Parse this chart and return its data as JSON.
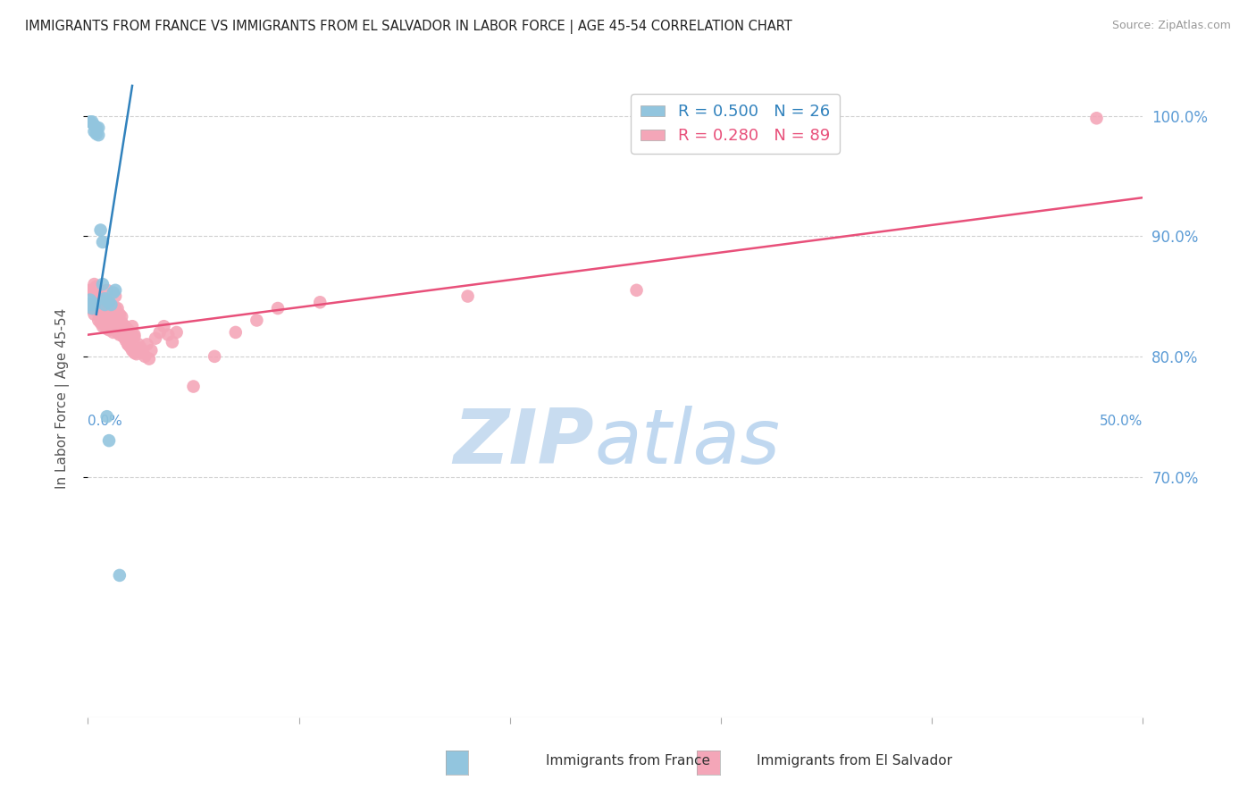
{
  "title": "IMMIGRANTS FROM FRANCE VS IMMIGRANTS FROM EL SALVADOR IN LABOR FORCE | AGE 45-54 CORRELATION CHART",
  "source": "Source: ZipAtlas.com",
  "ylabel": "In Labor Force | Age 45-54",
  "legend_r_france": "R = 0.500",
  "legend_n_france": "N = 26",
  "legend_r_salvador": "R = 0.280",
  "legend_n_salvador": "N = 89",
  "france_color": "#92c5de",
  "salvador_color": "#f4a6b8",
  "france_line_color": "#3182bd",
  "salvador_line_color": "#e8507a",
  "axis_label_color": "#5b9bd5",
  "grid_color": "#d0d0d0",
  "background_color": "#ffffff",
  "watermark_zip_color": "#c8dcf0",
  "watermark_atlas_color": "#c0d8f0",
  "xlim": [
    0.0,
    0.5
  ],
  "ylim": [
    0.5,
    1.03
  ],
  "ytick_positions": [
    0.7,
    0.8,
    0.9,
    1.0
  ],
  "ytick_labels": [
    "70.0%",
    "80.0%",
    "90.0%",
    "100.0%"
  ],
  "france_trend_x": [
    0.004,
    0.021
  ],
  "france_trend_y": [
    0.835,
    1.025
  ],
  "salvador_trend_x": [
    0.0,
    0.5
  ],
  "salvador_trend_y": [
    0.818,
    0.932
  ],
  "france_x": [
    0.001,
    0.002,
    0.003,
    0.003,
    0.004,
    0.004,
    0.005,
    0.005,
    0.006,
    0.007,
    0.007,
    0.008,
    0.008,
    0.009,
    0.01,
    0.011,
    0.012,
    0.013,
    0.001,
    0.001,
    0.002,
    0.002,
    0.003,
    0.009,
    0.01,
    0.015
  ],
  "france_y": [
    0.995,
    0.995,
    0.992,
    0.987,
    0.99,
    0.985,
    0.99,
    0.984,
    0.905,
    0.895,
    0.86,
    0.848,
    0.843,
    0.847,
    0.845,
    0.843,
    0.853,
    0.855,
    0.843,
    0.847,
    0.84,
    0.845,
    0.843,
    0.75,
    0.73,
    0.618
  ],
  "salvador_x": [
    0.001,
    0.002,
    0.003,
    0.003,
    0.004,
    0.004,
    0.005,
    0.005,
    0.005,
    0.006,
    0.006,
    0.006,
    0.007,
    0.007,
    0.008,
    0.008,
    0.009,
    0.009,
    0.01,
    0.01,
    0.011,
    0.011,
    0.012,
    0.012,
    0.013,
    0.013,
    0.014,
    0.014,
    0.015,
    0.015,
    0.016,
    0.016,
    0.017,
    0.017,
    0.018,
    0.018,
    0.019,
    0.019,
    0.02,
    0.02,
    0.021,
    0.021,
    0.022,
    0.022,
    0.023,
    0.024,
    0.025,
    0.026,
    0.027,
    0.028,
    0.029,
    0.03,
    0.032,
    0.034,
    0.036,
    0.038,
    0.04,
    0.042,
    0.001,
    0.002,
    0.003,
    0.004,
    0.005,
    0.006,
    0.007,
    0.008,
    0.009,
    0.01,
    0.011,
    0.012,
    0.013,
    0.014,
    0.015,
    0.016,
    0.017,
    0.018,
    0.019,
    0.02,
    0.021,
    0.022,
    0.05,
    0.06,
    0.07,
    0.08,
    0.09,
    0.11,
    0.18,
    0.26,
    0.478
  ],
  "salvador_y": [
    0.84,
    0.843,
    0.84,
    0.835,
    0.838,
    0.845,
    0.83,
    0.84,
    0.85,
    0.828,
    0.835,
    0.843,
    0.825,
    0.833,
    0.826,
    0.84,
    0.823,
    0.833,
    0.822,
    0.837,
    0.825,
    0.835,
    0.82,
    0.832,
    0.823,
    0.84,
    0.82,
    0.83,
    0.818,
    0.828,
    0.82,
    0.833,
    0.816,
    0.826,
    0.813,
    0.824,
    0.81,
    0.822,
    0.808,
    0.82,
    0.805,
    0.818,
    0.803,
    0.816,
    0.802,
    0.81,
    0.807,
    0.803,
    0.8,
    0.81,
    0.798,
    0.805,
    0.815,
    0.82,
    0.825,
    0.818,
    0.812,
    0.82,
    0.855,
    0.855,
    0.86,
    0.858,
    0.85,
    0.845,
    0.84,
    0.838,
    0.855,
    0.845,
    0.84,
    0.838,
    0.85,
    0.84,
    0.835,
    0.828,
    0.82,
    0.815,
    0.81,
    0.82,
    0.825,
    0.818,
    0.775,
    0.8,
    0.82,
    0.83,
    0.84,
    0.845,
    0.85,
    0.855,
    0.998
  ]
}
